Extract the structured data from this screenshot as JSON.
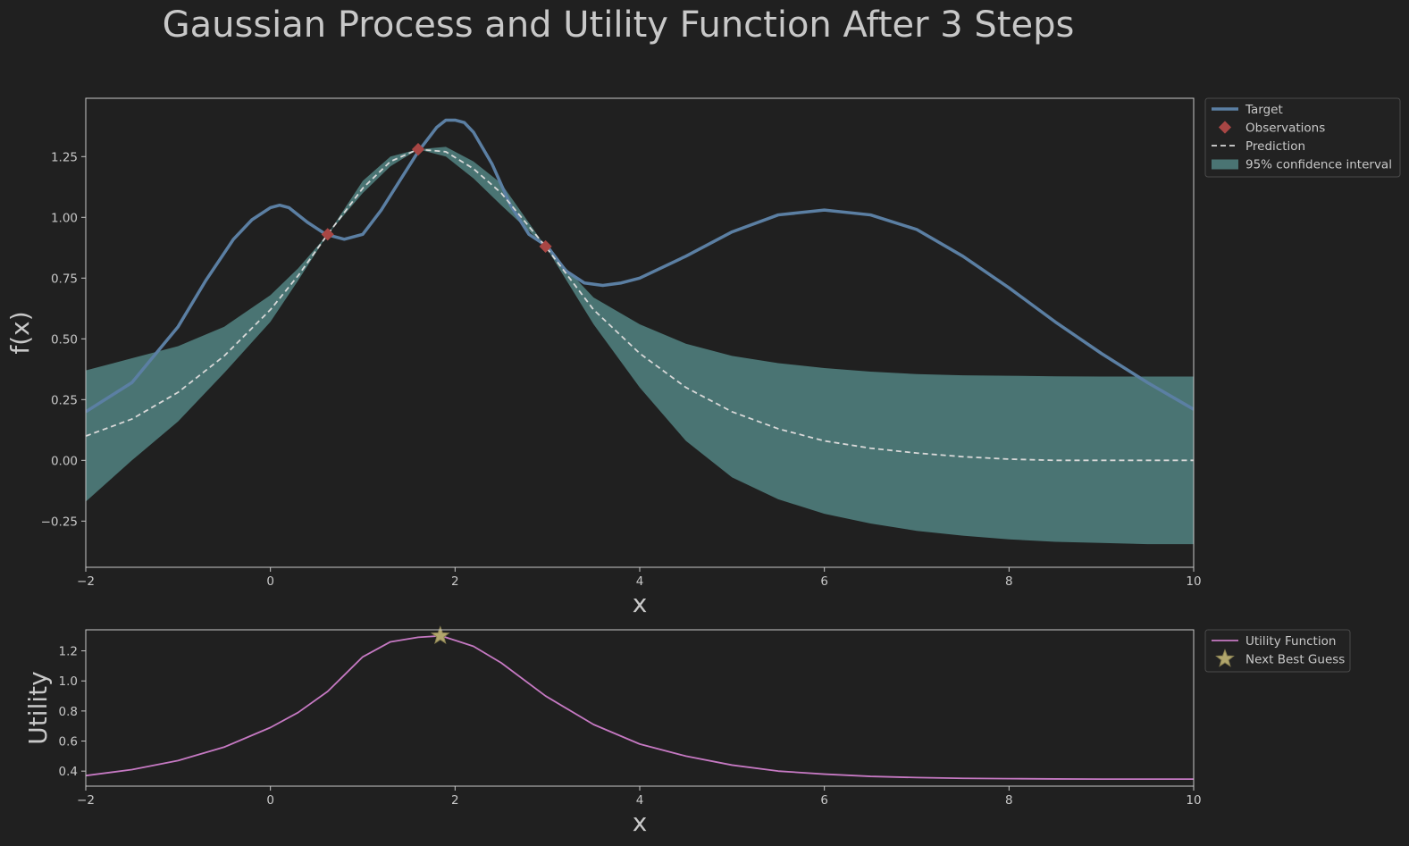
{
  "chart_data": {
    "title": "Gaussian Process and Utility Function After 3 Steps",
    "colors": {
      "background": "#202020",
      "target": "#5b7fa3",
      "observation": "#a84644",
      "prediction": "#d8d8d8",
      "confidence": "#4a7473",
      "utility": "#c679c3",
      "next_guess": "#b1a66c",
      "text": "#c8c8c8"
    },
    "charts": [
      {
        "type": "line",
        "xlabel": "x",
        "ylabel": "f(x)",
        "xlim": [
          -2,
          10
        ],
        "ylim": [
          -0.44,
          1.49
        ],
        "xticks": [
          -2,
          0,
          2,
          4,
          6,
          8,
          10
        ],
        "yticks": [
          -0.25,
          0.0,
          0.25,
          0.5,
          0.75,
          1.0,
          1.25
        ],
        "xtick_labels": [
          "−2",
          "0",
          "2",
          "4",
          "6",
          "8",
          "10"
        ],
        "ytick_labels": [
          "−0.25",
          "0.00",
          "0.25",
          "0.50",
          "0.75",
          "1.00",
          "1.25"
        ],
        "legend_position": "outside-top-right",
        "legend": [
          "Target",
          "Observations",
          "Prediction",
          "95% confidence interval"
        ],
        "series": [
          {
            "name": "Target",
            "style": "solid",
            "x": [
              -2,
              -1.5,
              -1,
              -0.7,
              -0.4,
              -0.2,
              0,
              0.1,
              0.2,
              0.4,
              0.6,
              0.8,
              1,
              1.2,
              1.4,
              1.6,
              1.8,
              1.9,
              2,
              2.1,
              2.2,
              2.4,
              2.6,
              2.8,
              3,
              3.2,
              3.4,
              3.6,
              3.8,
              4,
              4.5,
              5,
              5.5,
              6,
              6.5,
              7,
              7.5,
              8,
              8.5,
              9,
              9.5,
              10
            ],
            "y": [
              0.2,
              0.32,
              0.55,
              0.74,
              0.91,
              0.99,
              1.04,
              1.05,
              1.04,
              0.98,
              0.93,
              0.91,
              0.93,
              1.03,
              1.15,
              1.27,
              1.37,
              1.4,
              1.4,
              1.39,
              1.35,
              1.22,
              1.05,
              0.93,
              0.88,
              0.78,
              0.73,
              0.72,
              0.73,
              0.75,
              0.84,
              0.94,
              1.01,
              1.03,
              1.01,
              0.95,
              0.84,
              0.71,
              0.57,
              0.44,
              0.32,
              0.21
            ]
          },
          {
            "name": "Observations",
            "style": "markers",
            "x": [
              0.62,
              1.6,
              2.98
            ],
            "y": [
              0.93,
              1.28,
              0.88
            ]
          },
          {
            "name": "Prediction",
            "style": "dashed",
            "x": [
              -2,
              -1.5,
              -1,
              -0.5,
              0,
              0.3,
              0.62,
              1,
              1.3,
              1.6,
              1.9,
              2.2,
              2.5,
              2.98,
              3.5,
              4,
              4.5,
              5,
              5.5,
              6,
              6.5,
              7,
              7.5,
              8,
              8.5,
              9,
              9.5,
              10
            ],
            "y": [
              0.1,
              0.17,
              0.28,
              0.43,
              0.62,
              0.76,
              0.93,
              1.12,
              1.23,
              1.28,
              1.27,
              1.2,
              1.1,
              0.88,
              0.62,
              0.44,
              0.3,
              0.2,
              0.13,
              0.08,
              0.05,
              0.03,
              0.015,
              0.005,
              0.0,
              0.0,
              0.0,
              0.0
            ]
          },
          {
            "name": "95% confidence interval",
            "style": "band",
            "x": [
              -2,
              -1.5,
              -1,
              -0.5,
              0,
              0.3,
              0.62,
              1,
              1.3,
              1.6,
              1.9,
              2.2,
              2.5,
              2.98,
              3.5,
              4,
              4.5,
              5,
              5.5,
              6,
              6.5,
              7,
              7.5,
              8,
              8.5,
              9,
              9.5,
              10
            ],
            "lower": [
              -0.17,
              0.0,
              0.16,
              0.36,
              0.57,
              0.74,
              0.93,
              1.1,
              1.21,
              1.28,
              1.25,
              1.16,
              1.05,
              0.88,
              0.56,
              0.3,
              0.08,
              -0.07,
              -0.16,
              -0.22,
              -0.26,
              -0.29,
              -0.31,
              -0.325,
              -0.335,
              -0.34,
              -0.345,
              -0.345
            ],
            "upper": [
              0.37,
              0.42,
              0.47,
              0.55,
              0.68,
              0.79,
              0.93,
              1.15,
              1.25,
              1.28,
              1.29,
              1.23,
              1.14,
              0.88,
              0.67,
              0.56,
              0.48,
              0.43,
              0.4,
              0.38,
              0.365,
              0.355,
              0.35,
              0.348,
              0.346,
              0.345,
              0.345,
              0.345
            ]
          }
        ]
      },
      {
        "type": "line",
        "xlabel": "x",
        "ylabel": "Utility",
        "xlim": [
          -2,
          10
        ],
        "ylim": [
          0.3,
          1.34
        ],
        "xticks": [
          -2,
          0,
          2,
          4,
          6,
          8,
          10
        ],
        "yticks": [
          0.4,
          0.6,
          0.8,
          1.0,
          1.2
        ],
        "xtick_labels": [
          "−2",
          "0",
          "2",
          "4",
          "6",
          "8",
          "10"
        ],
        "ytick_labels": [
          "0.4",
          "0.6",
          "0.8",
          "1.0",
          "1.2"
        ],
        "legend_position": "outside-top-right",
        "legend": [
          "Utility Function",
          "Next Best Guess"
        ],
        "series": [
          {
            "name": "Utility Function",
            "style": "solid",
            "x": [
              -2,
              -1.5,
              -1,
              -0.5,
              0,
              0.3,
              0.62,
              1,
              1.3,
              1.6,
              1.85,
              2.2,
              2.5,
              2.98,
              3.5,
              4,
              4.5,
              5,
              5.5,
              6,
              6.5,
              7,
              7.5,
              8,
              8.5,
              9,
              9.5,
              10
            ],
            "y": [
              0.37,
              0.41,
              0.47,
              0.56,
              0.69,
              0.79,
              0.93,
              1.16,
              1.26,
              1.29,
              1.3,
              1.23,
              1.12,
              0.9,
              0.71,
              0.58,
              0.5,
              0.44,
              0.4,
              0.38,
              0.365,
              0.357,
              0.352,
              0.35,
              0.348,
              0.347,
              0.347,
              0.347
            ]
          },
          {
            "name": "Next Best Guess",
            "style": "star",
            "x": [
              1.84
            ],
            "y": [
              1.3
            ]
          }
        ]
      }
    ]
  }
}
